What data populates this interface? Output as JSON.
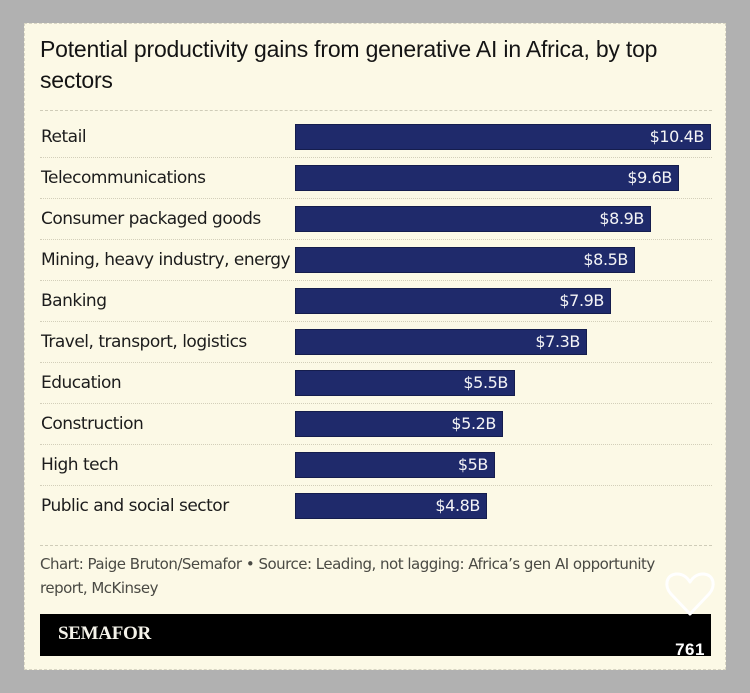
{
  "card": {
    "title": "Potential productivity gains from generative AI in Africa, by top sectors",
    "source": "Chart: Paige Bruton/Semafor • Source: Leading, not lagging: Africa’s gen AI opportunity report, McKinsey",
    "brand": "SEMAFOR"
  },
  "overlay": {
    "like_icon": "heart-outline-icon",
    "like_count": "761"
  },
  "colors": {
    "bar": "#1f2a6b",
    "background": "#fcf9e6",
    "banner": "#000000"
  },
  "chart_data": {
    "type": "bar",
    "orientation": "horizontal",
    "title": "Potential productivity gains from generative AI in Africa, by top sectors",
    "xlabel": "",
    "ylabel": "",
    "unit": "USD billions",
    "grid": false,
    "legend": "none",
    "xlim": [
      0,
      10.4
    ],
    "categories": [
      "Retail",
      "Telecommunications",
      "Consumer packaged goods",
      "Mining, heavy industry, energy",
      "Banking",
      "Travel, transport, logistics",
      "Education",
      "Construction",
      "High tech",
      "Public and social sector"
    ],
    "values": [
      10.4,
      9.6,
      8.9,
      8.5,
      7.9,
      7.3,
      5.5,
      5.2,
      5.0,
      4.8
    ],
    "data_labels": [
      "$10.4B",
      "$9.6B",
      "$8.9B",
      "$8.5B",
      "$7.9B",
      "$7.3B",
      "$5.5B",
      "$5.2B",
      "$5B",
      "$4.8B"
    ]
  }
}
